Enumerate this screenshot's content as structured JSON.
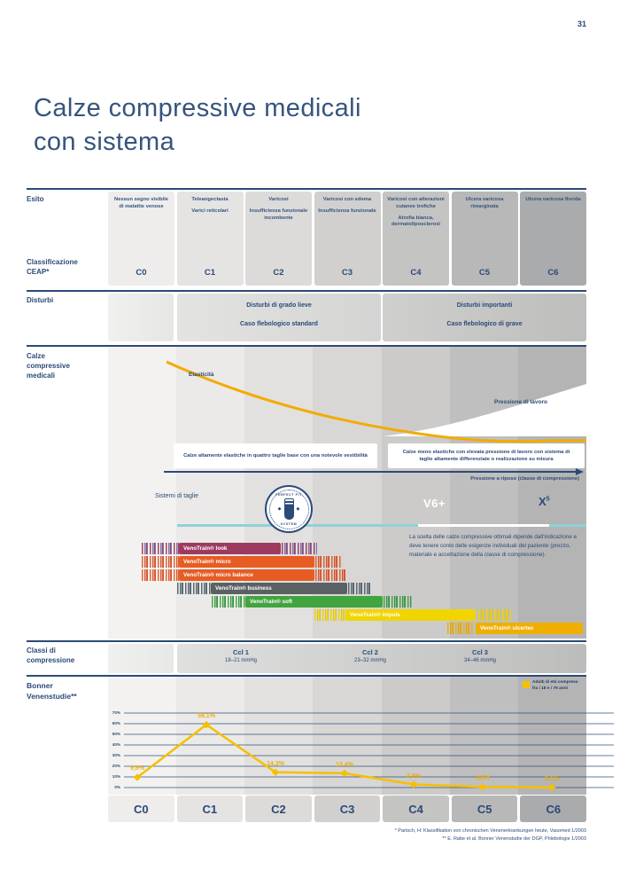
{
  "page": {
    "number": "31",
    "title_line1": "Calze compressive medicali",
    "title_line2": "con sistema"
  },
  "colors": {
    "navy": "#2b4a78",
    "title_blue": "#35547f",
    "elastic_curve_orange": "#f3ab00",
    "chart_line_yellow": "#f5c000",
    "point_label_yellow": "#eead00",
    "teal_line": "#8ed2d6",
    "cell_shades": [
      "#eeedec",
      "#e5e4e3",
      "#dcdbda",
      "#d1d0cf",
      "#c4c4c3",
      "#b8b8b8",
      "#aaabac"
    ],
    "stripe_shades": [
      "#f3f2f1",
      "#ebeae9",
      "#e2e1e0",
      "#d8d7d6",
      "#cccbca",
      "#c0bfbf",
      "#b4b4b4"
    ]
  },
  "ceap_table": {
    "esito_label": "Esito",
    "ceap_label_line1": "Classificazione",
    "ceap_label_line2": "CEAP*",
    "columns": [
      {
        "code": "C0",
        "desc1": "Nessun segno visibile di malattie venose",
        "desc2": ""
      },
      {
        "code": "C1",
        "desc1": "Teleangectasia",
        "desc2": "Varici reticolari"
      },
      {
        "code": "C2",
        "desc1": "Varicosi",
        "desc2": "Insufficienza funzionale incombente"
      },
      {
        "code": "C3",
        "desc1": "Varicosi con edema",
        "desc2": "Insufficienza funzionale"
      },
      {
        "code": "C4",
        "desc1": "Varicosi con alterazioni cutanee trofiche",
        "desc2": "Atrofia bianca, dermatoliposclerosi"
      },
      {
        "code": "C5",
        "desc1": "Ulcera varicosa rimarginata",
        "desc2": ""
      },
      {
        "code": "C6",
        "desc1": "Ulcera varicosa florida",
        "desc2": ""
      }
    ]
  },
  "disturbi": {
    "label": "Disturbi",
    "mild_line1": "Disturbi di grado lieve",
    "mild_line2": "Caso flebologico standard",
    "severe_line1": "Disturbi importanti",
    "severe_line2": "Caso flebologico di grave"
  },
  "calze": {
    "label_line1": "Calze",
    "label_line2": "compressive",
    "label_line3": "medicali",
    "elasticity_label": "Elasticità",
    "working_pressure_label": "Pressione di lavoro",
    "left_box": "Calze altamente elastiche in quattro taglie base con una notevole vestibilità",
    "right_box": "Calze meno elastiche con elevata pressione di lavoro con sistema di taglie altamente differenziate o realizzazione su misura",
    "axis_label": "Pressione a riposo (classe di compressione)",
    "size_systems_label": "Sistemi di taglie",
    "badge_top": "PERFECT FIT",
    "badge_bottom": "SYSTEM",
    "v6_label": "V6+",
    "x5_label": "X",
    "x5_sup": "5",
    "note": "La scelta delle calze compressive ottimali dipende dall'indicazione e deve tenere conto delle esigenze individuali del paziente (prezzo, materiale e accettazione della classe di compressione).",
    "products": [
      {
        "name": "VenoTrain® look",
        "color": "#9e3a5f",
        "hatch_accent": "#6a6fa8"
      },
      {
        "name": "VenoTrain® micro",
        "color": "#e65c23",
        "hatch_accent": "#c94a33"
      },
      {
        "name": "VenoTrain® micro balance",
        "color": "#e65c23",
        "hatch_accent": "#c94a33"
      },
      {
        "name": "VenoTrain® business",
        "color": "#5b6163",
        "hatch_accent": "#49657c"
      },
      {
        "name": "VenoTrain® soft",
        "color": "#41a53f",
        "hatch_accent": "#2e8f44"
      },
      {
        "name": "VenoTrain® impuls",
        "color": "#f0d500",
        "hatch_accent": "#e2c300"
      },
      {
        "name": "VenoTrain® ulcertec",
        "color": "#efae00",
        "hatch_accent": "#e0a000"
      }
    ]
  },
  "classi": {
    "label_line1": "Classi di",
    "label_line2": "compressione",
    "items": [
      {
        "name": "Ccl 1",
        "range": "18–21 mmHg"
      },
      {
        "name": "Ccl 2",
        "range": "23–32 mmHg"
      },
      {
        "name": "Ccl 3",
        "range": "34–46 mmHg"
      }
    ]
  },
  "bonner": {
    "label_line1": "Bonner",
    "label_line2": "Venenstudie**",
    "legend_text": "Adulti di età compresa fra i 18 e i 79 anni"
  },
  "chart_data": {
    "type": "line",
    "title": "Bonner Venenstudie",
    "categories": [
      "C0",
      "C1",
      "C2",
      "C3",
      "C4",
      "C5",
      "C6"
    ],
    "values": [
      9.6,
      59.1,
      14.3,
      13.4,
      2.9,
      0.6,
      0.1
    ],
    "point_labels": [
      "9,6%",
      "59,1%",
      "14,3%",
      "13,4%",
      "2,9%",
      "0,6%",
      "0,1%"
    ],
    "yticks": [
      "70%",
      "60%",
      "50%",
      "40%",
      "30%",
      "20%",
      "10%",
      "0%"
    ],
    "ylim": [
      0,
      70
    ],
    "xlabel": "",
    "ylabel": "",
    "grid": true,
    "legend": [
      "Adulti di età compresa fra i 18 e i 79 anni"
    ],
    "legend_position": "top-right",
    "line_color": "#f5c000"
  },
  "footnotes": {
    "line1": "* Partsch, H: Klassifikation von chronischen Venenerkrankungen heute, Vasomed 1/2003",
    "line2": "** E. Rabe et al. Bonner Venenstudie der DGP, Phlebologie 1/2003"
  }
}
